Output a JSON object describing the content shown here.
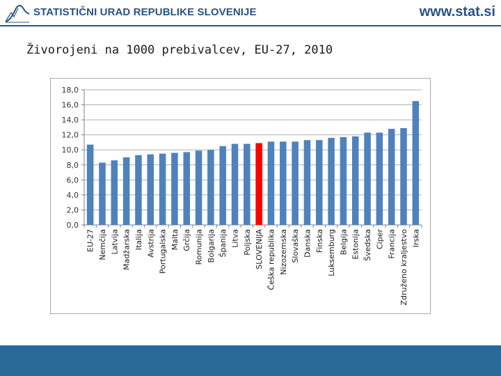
{
  "header": {
    "logo_icon": "curve-logo-icon",
    "organization": "STATISTIČNI URAD REPUBLIKE SLOVENIJE",
    "website": "www.stat.si",
    "brand_color": "#2a5380"
  },
  "footer": {
    "color": "#2a6a99"
  },
  "chart_data": {
    "type": "bar",
    "title": "Živorojeni na 1000 prebivalcev, EU-27, 2010",
    "xlabel": "",
    "ylabel": "",
    "ylim": [
      0,
      18
    ],
    "yticks": [
      "0,0",
      "2,0",
      "4,0",
      "6,0",
      "8,0",
      "10,0",
      "12,0",
      "14,0",
      "16,0",
      "18,0"
    ],
    "grid": true,
    "bar_color": "#4f81bd",
    "highlight_color": "#ff0000",
    "highlight_category": "SLOVENIJA",
    "categories": [
      "EU-27",
      "Nemčija",
      "Latvija",
      "Madžarska",
      "Italija",
      "Avstrija",
      "Portugalska",
      "Malta",
      "Grčija",
      "Romunija",
      "Bolgarija",
      "Španija",
      "Litva",
      "Poljska",
      "SLOVENIJA",
      "Češka republika",
      "Nizozemska",
      "Slovaška",
      "Danska",
      "Finska",
      "Luksemburg",
      "Belgija",
      "Estonija",
      "Švedska",
      "Ciper",
      "Francija",
      "Združeno kraljestvo",
      "Irska"
    ],
    "values": [
      10.7,
      8.3,
      8.6,
      9.0,
      9.3,
      9.4,
      9.5,
      9.6,
      9.7,
      9.9,
      10.0,
      10.5,
      10.8,
      10.8,
      10.9,
      11.1,
      11.1,
      11.1,
      11.3,
      11.3,
      11.6,
      11.7,
      11.8,
      12.3,
      12.3,
      12.8,
      12.9,
      16.5
    ]
  }
}
